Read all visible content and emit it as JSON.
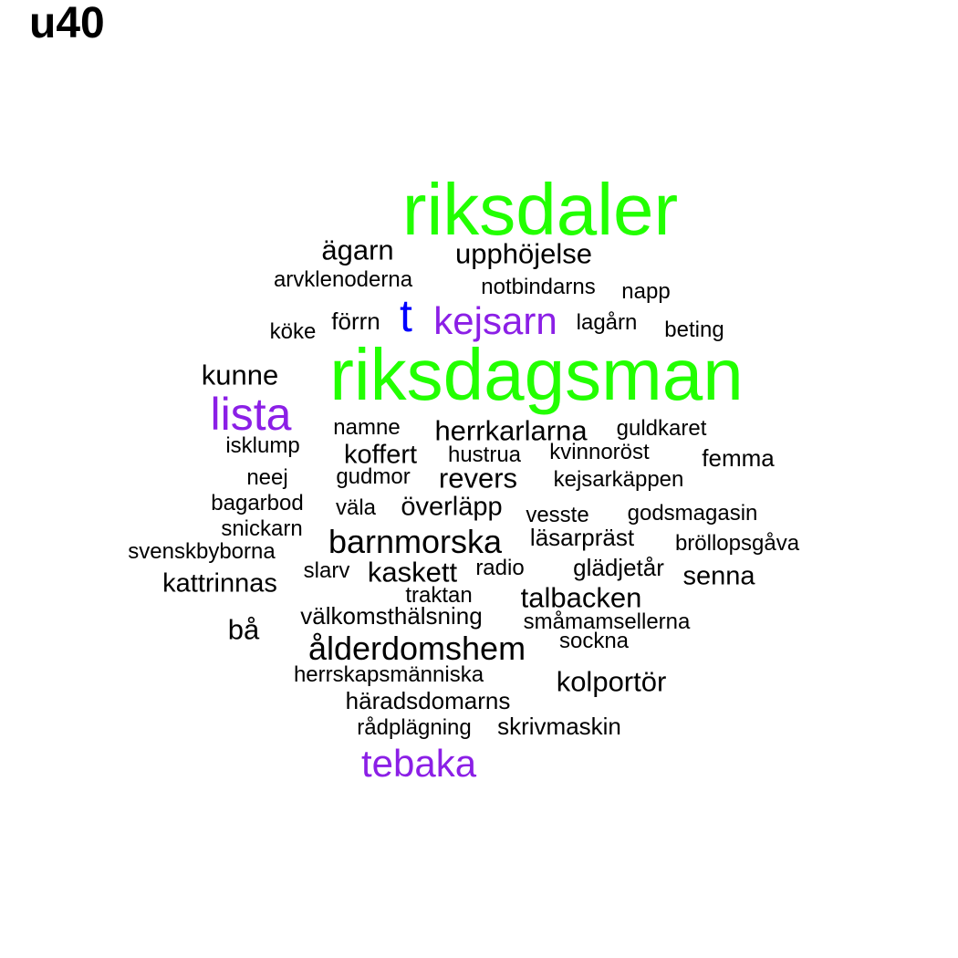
{
  "title": "u40",
  "colors": {
    "green": "#22ff00",
    "purple": "#8b1fe6",
    "blue": "#0000ff",
    "black": "#000000"
  },
  "words": [
    "riksdaler",
    "ägarn",
    "upphöjelse",
    "arvklenoderna",
    "notbindarns",
    "napp",
    "t",
    "kejsarn",
    "förrn",
    "lagårn",
    "köke",
    "beting",
    "riksdagsman",
    "kunne",
    "lista",
    "namne",
    "herrkarlarna",
    "guldkaret",
    "isklump",
    "koffert",
    "hustrua",
    "kvinnoröst",
    "femma",
    "neej",
    "gudmor",
    "revers",
    "kejsarkäppen",
    "bagarbod",
    "väla",
    "överläpp",
    "vesste",
    "godsmagasin",
    "snickarn",
    "läsarpräst",
    "svenskbyborna",
    "barnmorska",
    "bröllopsgåva",
    "slarv",
    "kaskett",
    "radio",
    "glädjetår",
    "kattrinnas",
    "senna",
    "traktan",
    "talbacken",
    "välkomsthälsning",
    "bå",
    "småmamsellerna",
    "ålderdomshem",
    "sockna",
    "herrskapsmänniska",
    "kolportör",
    "häradsdomarns",
    "rådplägning",
    "skrivmaskin",
    "tebaka"
  ]
}
